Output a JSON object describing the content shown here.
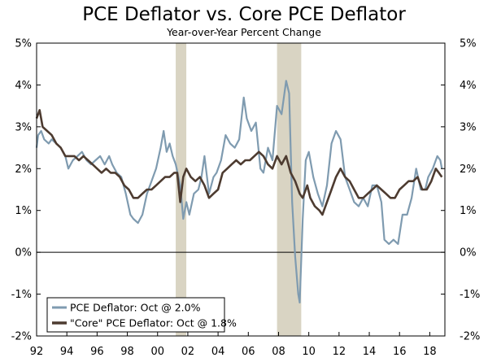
{
  "chart_data": {
    "type": "line",
    "title": "PCE Deflator vs. Core PCE Deflator",
    "subtitle": "Year-over-Year Percent Change",
    "xlim": [
      1992,
      2019
    ],
    "ylim": [
      -2,
      5
    ],
    "y_ticks": [
      {
        "value": 5,
        "label": "5%"
      },
      {
        "value": 4,
        "label": "4%"
      },
      {
        "value": 3,
        "label": "3%"
      },
      {
        "value": 2,
        "label": "2%"
      },
      {
        "value": 1,
        "label": "1%"
      },
      {
        "value": 0,
        "label": "0%"
      },
      {
        "value": -1,
        "label": "-1%"
      },
      {
        "value": -2,
        "label": "-2%"
      }
    ],
    "x_ticks": [
      {
        "value": 1992,
        "label": "92"
      },
      {
        "value": 1994,
        "label": "94"
      },
      {
        "value": 1996,
        "label": "96"
      },
      {
        "value": 1998,
        "label": "98"
      },
      {
        "value": 2000,
        "label": "00"
      },
      {
        "value": 2002,
        "label": "02"
      },
      {
        "value": 2004,
        "label": "04"
      },
      {
        "value": 2006,
        "label": "06"
      },
      {
        "value": 2008,
        "label": "08"
      },
      {
        "value": 2010,
        "label": "10"
      },
      {
        "value": 2012,
        "label": "12"
      },
      {
        "value": 2014,
        "label": "14"
      },
      {
        "value": 2016,
        "label": "16"
      },
      {
        "value": 2018,
        "label": "18"
      }
    ],
    "grid": false,
    "zero_line": true,
    "legend_position": "bottom-left",
    "shaded_periods": [
      {
        "start": 2001.2,
        "end": 2001.9
      },
      {
        "start": 2007.9,
        "end": 2009.5
      }
    ],
    "colors": {
      "pce": "#7f9bb0",
      "core": "#4d3b30",
      "recession": "#d9d4c3"
    },
    "series": [
      {
        "name": "PCE Deflator: Oct @ 2.0%",
        "color": "#7f9bb0",
        "points": [
          [
            1992.0,
            2.5
          ],
          [
            1992.1,
            2.8
          ],
          [
            1992.3,
            2.9
          ],
          [
            1992.5,
            2.7
          ],
          [
            1992.8,
            2.6
          ],
          [
            1993.0,
            2.7
          ],
          [
            1993.3,
            2.6
          ],
          [
            1993.6,
            2.5
          ],
          [
            1993.9,
            2.3
          ],
          [
            1994.1,
            2.0
          ],
          [
            1994.4,
            2.2
          ],
          [
            1994.7,
            2.3
          ],
          [
            1995.0,
            2.4
          ],
          [
            1995.3,
            2.2
          ],
          [
            1995.6,
            2.1
          ],
          [
            1995.9,
            2.2
          ],
          [
            1996.2,
            2.3
          ],
          [
            1996.5,
            2.1
          ],
          [
            1996.8,
            2.3
          ],
          [
            1997.0,
            2.1
          ],
          [
            1997.3,
            1.9
          ],
          [
            1997.6,
            1.8
          ],
          [
            1997.9,
            1.4
          ],
          [
            1998.2,
            0.9
          ],
          [
            1998.4,
            0.8
          ],
          [
            1998.7,
            0.7
          ],
          [
            1999.0,
            0.9
          ],
          [
            1999.3,
            1.4
          ],
          [
            1999.6,
            1.7
          ],
          [
            1999.9,
            2.0
          ],
          [
            2000.2,
            2.5
          ],
          [
            2000.4,
            2.9
          ],
          [
            2000.6,
            2.4
          ],
          [
            2000.8,
            2.6
          ],
          [
            2001.0,
            2.3
          ],
          [
            2001.2,
            2.1
          ],
          [
            2001.5,
            1.6
          ],
          [
            2001.7,
            0.8
          ],
          [
            2001.9,
            1.2
          ],
          [
            2002.1,
            0.9
          ],
          [
            2002.4,
            1.4
          ],
          [
            2002.7,
            1.5
          ],
          [
            2002.9,
            1.8
          ],
          [
            2003.1,
            2.3
          ],
          [
            2003.4,
            1.4
          ],
          [
            2003.7,
            1.8
          ],
          [
            2003.9,
            1.9
          ],
          [
            2004.2,
            2.2
          ],
          [
            2004.5,
            2.8
          ],
          [
            2004.8,
            2.6
          ],
          [
            2005.1,
            2.5
          ],
          [
            2005.4,
            2.7
          ],
          [
            2005.7,
            3.7
          ],
          [
            2005.9,
            3.2
          ],
          [
            2006.2,
            2.9
          ],
          [
            2006.5,
            3.1
          ],
          [
            2006.8,
            2.0
          ],
          [
            2007.0,
            1.9
          ],
          [
            2007.3,
            2.5
          ],
          [
            2007.6,
            2.2
          ],
          [
            2007.9,
            3.5
          ],
          [
            2008.2,
            3.3
          ],
          [
            2008.5,
            4.1
          ],
          [
            2008.7,
            3.8
          ],
          [
            2008.9,
            1.2
          ],
          [
            2009.1,
            -0.1
          ],
          [
            2009.3,
            -1.0
          ],
          [
            2009.4,
            -1.2
          ],
          [
            2009.6,
            0.8
          ],
          [
            2009.8,
            2.2
          ],
          [
            2010.0,
            2.4
          ],
          [
            2010.3,
            1.8
          ],
          [
            2010.6,
            1.4
          ],
          [
            2010.9,
            1.1
          ],
          [
            2011.2,
            1.6
          ],
          [
            2011.5,
            2.6
          ],
          [
            2011.8,
            2.9
          ],
          [
            2012.1,
            2.7
          ],
          [
            2012.4,
            1.8
          ],
          [
            2012.7,
            1.5
          ],
          [
            2013.0,
            1.2
          ],
          [
            2013.3,
            1.1
          ],
          [
            2013.6,
            1.3
          ],
          [
            2013.9,
            1.1
          ],
          [
            2014.2,
            1.6
          ],
          [
            2014.5,
            1.6
          ],
          [
            2014.8,
            1.2
          ],
          [
            2015.0,
            0.3
          ],
          [
            2015.3,
            0.2
          ],
          [
            2015.6,
            0.3
          ],
          [
            2015.9,
            0.2
          ],
          [
            2016.2,
            0.9
          ],
          [
            2016.5,
            0.9
          ],
          [
            2016.8,
            1.3
          ],
          [
            2017.1,
            2.0
          ],
          [
            2017.4,
            1.5
          ],
          [
            2017.7,
            1.5
          ],
          [
            2017.9,
            1.8
          ],
          [
            2018.2,
            2.0
          ],
          [
            2018.5,
            2.3
          ],
          [
            2018.7,
            2.2
          ],
          [
            2018.8,
            2.0
          ]
        ]
      },
      {
        "name": "\"Core\" PCE Deflator: Oct @ 1.8%",
        "color": "#4d3b30",
        "points": [
          [
            1992.0,
            3.2
          ],
          [
            1992.2,
            3.4
          ],
          [
            1992.4,
            3.0
          ],
          [
            1992.7,
            2.9
          ],
          [
            1993.0,
            2.8
          ],
          [
            1993.3,
            2.6
          ],
          [
            1993.6,
            2.5
          ],
          [
            1993.9,
            2.3
          ],
          [
            1994.2,
            2.3
          ],
          [
            1994.5,
            2.3
          ],
          [
            1994.8,
            2.2
          ],
          [
            1995.1,
            2.3
          ],
          [
            1995.4,
            2.2
          ],
          [
            1995.7,
            2.1
          ],
          [
            1996.0,
            2.0
          ],
          [
            1996.3,
            1.9
          ],
          [
            1996.6,
            2.0
          ],
          [
            1996.9,
            1.9
          ],
          [
            1997.2,
            1.9
          ],
          [
            1997.5,
            1.8
          ],
          [
            1997.8,
            1.6
          ],
          [
            1998.1,
            1.5
          ],
          [
            1998.4,
            1.3
          ],
          [
            1998.7,
            1.3
          ],
          [
            1999.0,
            1.4
          ],
          [
            1999.3,
            1.5
          ],
          [
            1999.6,
            1.5
          ],
          [
            1999.9,
            1.6
          ],
          [
            2000.2,
            1.7
          ],
          [
            2000.5,
            1.8
          ],
          [
            2000.8,
            1.8
          ],
          [
            2001.1,
            1.9
          ],
          [
            2001.3,
            1.9
          ],
          [
            2001.5,
            1.2
          ],
          [
            2001.7,
            1.8
          ],
          [
            2001.9,
            2.0
          ],
          [
            2002.2,
            1.8
          ],
          [
            2002.5,
            1.7
          ],
          [
            2002.8,
            1.8
          ],
          [
            2003.1,
            1.6
          ],
          [
            2003.4,
            1.3
          ],
          [
            2003.7,
            1.4
          ],
          [
            2004.0,
            1.5
          ],
          [
            2004.3,
            1.9
          ],
          [
            2004.6,
            2.0
          ],
          [
            2004.9,
            2.1
          ],
          [
            2005.2,
            2.2
          ],
          [
            2005.5,
            2.1
          ],
          [
            2005.8,
            2.2
          ],
          [
            2006.1,
            2.2
          ],
          [
            2006.4,
            2.3
          ],
          [
            2006.7,
            2.4
          ],
          [
            2007.0,
            2.3
          ],
          [
            2007.3,
            2.1
          ],
          [
            2007.6,
            2.0
          ],
          [
            2007.9,
            2.3
          ],
          [
            2008.2,
            2.1
          ],
          [
            2008.5,
            2.3
          ],
          [
            2008.8,
            1.9
          ],
          [
            2009.1,
            1.7
          ],
          [
            2009.4,
            1.4
          ],
          [
            2009.6,
            1.3
          ],
          [
            2009.9,
            1.6
          ],
          [
            2010.1,
            1.3
          ],
          [
            2010.4,
            1.1
          ],
          [
            2010.7,
            1.0
          ],
          [
            2010.9,
            0.9
          ],
          [
            2011.2,
            1.2
          ],
          [
            2011.5,
            1.5
          ],
          [
            2011.8,
            1.8
          ],
          [
            2012.1,
            2.0
          ],
          [
            2012.4,
            1.8
          ],
          [
            2012.7,
            1.7
          ],
          [
            2013.0,
            1.5
          ],
          [
            2013.3,
            1.3
          ],
          [
            2013.6,
            1.3
          ],
          [
            2013.9,
            1.4
          ],
          [
            2014.2,
            1.5
          ],
          [
            2014.5,
            1.6
          ],
          [
            2014.8,
            1.5
          ],
          [
            2015.1,
            1.4
          ],
          [
            2015.4,
            1.3
          ],
          [
            2015.7,
            1.3
          ],
          [
            2016.0,
            1.5
          ],
          [
            2016.3,
            1.6
          ],
          [
            2016.6,
            1.7
          ],
          [
            2016.9,
            1.7
          ],
          [
            2017.2,
            1.8
          ],
          [
            2017.5,
            1.5
          ],
          [
            2017.8,
            1.5
          ],
          [
            2018.1,
            1.7
          ],
          [
            2018.4,
            2.0
          ],
          [
            2018.6,
            1.9
          ],
          [
            2018.8,
            1.8
          ]
        ]
      }
    ]
  }
}
